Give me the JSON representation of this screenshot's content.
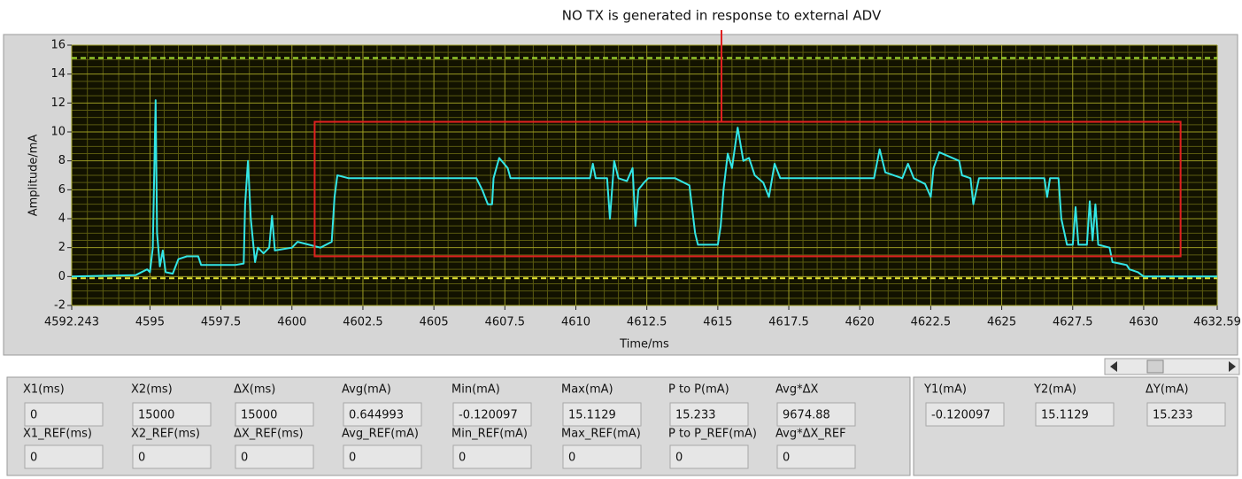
{
  "chart_data": {
    "type": "line",
    "annotation": "NO TX is generated in response to external ADV",
    "xlabel": "Time/ms",
    "ylabel": "Amplitude/mA",
    "xlim": [
      4592.243,
      4632.59
    ],
    "ylim": [
      -2,
      16
    ],
    "xticks": [
      4592.243,
      4595,
      4597.5,
      4600,
      4602.5,
      4605,
      4607.5,
      4610,
      4612.5,
      4615,
      4617.5,
      4620,
      4622.5,
      4625,
      4627.5,
      4630,
      4632.59
    ],
    "yticks": [
      -2,
      0,
      2,
      4,
      6,
      8,
      10,
      12,
      14,
      16
    ],
    "grid": true,
    "highlight": {
      "color": "#e02020",
      "xlim": [
        4600.8,
        4631.3
      ],
      "ylim": [
        1.4,
        10.7
      ]
    },
    "cursors": [
      {
        "color": "#a8e632",
        "y": 15.1129
      },
      {
        "color": "#e6e632",
        "y": -0.120097
      }
    ],
    "series": [
      {
        "color": "#33e6e6",
        "x": [
          4592.243,
          4594.5,
          4594.9,
          4595.0,
          4595.1,
          4595.2,
          4595.25,
          4595.35,
          4595.45,
          4595.55,
          4595.8,
          4596.0,
          4596.3,
          4596.7,
          4596.8,
          4598.0,
          4598.3,
          4598.35,
          4598.45,
          4598.55,
          4598.7,
          4598.8,
          4599.0,
          4599.2,
          4599.3,
          4599.4,
          4600.0,
          4600.2,
          4600.6,
          4601.0,
          4601.4,
          4601.5,
          4601.6,
          4602,
          4606.5,
          4606.7,
          4606.9,
          4607.05,
          4607.1,
          4607.3,
          4607.6,
          4607.7,
          4610.5,
          4610.6,
          4610.7,
          4611.1,
          4611.2,
          4611.35,
          4611.5,
          4611.8,
          4612.0,
          4612.1,
          4612.2,
          4612.4,
          4612.55,
          4613.5,
          4614.0,
          4614.2,
          4614.3,
          4615.0,
          4615.1,
          4615.2,
          4615.35,
          4615.5,
          4615.7,
          4615.9,
          4616.1,
          4616.3,
          4616.6,
          4616.8,
          4617.0,
          4617.2,
          4620.5,
          4620.7,
          4620.9,
          4621.5,
          4621.7,
          4621.9,
          4622.3,
          4622.5,
          4622.6,
          4622.8,
          4623.5,
          4623.6,
          4623.9,
          4624.0,
          4624.2,
          4626.5,
          4626.6,
          4626.7,
          4627.0,
          4627.1,
          4627.3,
          4627.5,
          4627.6,
          4627.7,
          4628.0,
          4628.1,
          4628.2,
          4628.3,
          4628.4,
          4628.8,
          4628.9,
          4629.4,
          4629.5,
          4629.8,
          4630.0,
          4632.59
        ],
        "values": [
          0,
          0.1,
          0.5,
          0.3,
          2.0,
          12.2,
          3,
          0.7,
          1.8,
          0.3,
          0.2,
          1.2,
          1.4,
          1.4,
          0.8,
          0.8,
          0.9,
          5,
          8.0,
          4,
          1.0,
          2.0,
          1.6,
          2.0,
          4.2,
          1.8,
          2.0,
          2.4,
          2.2,
          2.0,
          2.4,
          5.5,
          7.0,
          6.8,
          6.8,
          6.0,
          5.0,
          5.0,
          6.8,
          8.2,
          7.5,
          6.8,
          6.8,
          7.8,
          6.8,
          6.8,
          4.0,
          8.0,
          6.8,
          6.6,
          7.5,
          3.5,
          6.0,
          6.5,
          6.8,
          6.8,
          6.3,
          3.0,
          2.2,
          2.2,
          3.5,
          6.0,
          8.5,
          7.5,
          10.3,
          8.0,
          8.2,
          7.0,
          6.5,
          5.5,
          7.8,
          6.8,
          6.8,
          8.8,
          7.2,
          6.8,
          7.8,
          6.8,
          6.4,
          5.5,
          7.5,
          8.6,
          8.0,
          7.0,
          6.8,
          5.0,
          6.8,
          6.8,
          5.5,
          6.8,
          6.8,
          4.0,
          2.2,
          2.2,
          4.8,
          2.2,
          2.2,
          5.2,
          2.5,
          5.0,
          2.2,
          2.0,
          1.0,
          0.8,
          0.5,
          0.3,
          0.0,
          0.0
        ]
      }
    ]
  },
  "cursor_panel": {
    "fields": [
      {
        "label": "X1(ms)",
        "value": 0
      },
      {
        "label": "X2(ms)",
        "value": 15000
      },
      {
        "label": "ΔX(ms)",
        "value": 15000
      },
      {
        "label": "Avg(mA)",
        "value": 0.644993
      },
      {
        "label": "Min(mA)",
        "value": -0.120097
      },
      {
        "label": "Max(mA)",
        "value": 15.1129
      },
      {
        "label": "P to P(mA)",
        "value": 15.233
      },
      {
        "label": "Avg*ΔX",
        "value": 9674.88
      }
    ],
    "ref_fields": [
      {
        "label": "X1_REF(ms)",
        "value": 0
      },
      {
        "label": "X2_REF(ms)",
        "value": 0
      },
      {
        "label": "ΔX_REF(ms)",
        "value": 0
      },
      {
        "label": "Avg_REF(mA)",
        "value": 0
      },
      {
        "label": "Min_REF(mA)",
        "value": 0
      },
      {
        "label": "Max_REF(mA)",
        "value": 0
      },
      {
        "label": "P to P_REF(mA)",
        "value": 0
      },
      {
        "label": "Avg*ΔX_REF",
        "value": 0
      }
    ]
  },
  "y_panel": {
    "fields": [
      {
        "label": "Y1(mA)",
        "value": -0.120097
      },
      {
        "label": "Y2(mA)",
        "value": 15.1129
      },
      {
        "label": "ΔY(mA)",
        "value": 15.233
      }
    ]
  }
}
